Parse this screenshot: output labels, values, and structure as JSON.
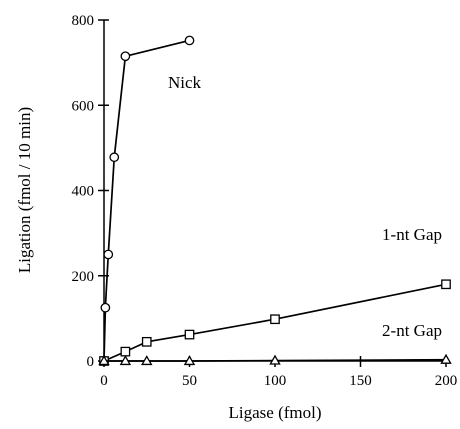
{
  "chart_data": {
    "type": "line",
    "xlabel": "Ligase (fmol)",
    "ylabel": "Ligation (fmol / 10 min)",
    "xlim": [
      0,
      200
    ],
    "ylim": [
      0,
      800
    ],
    "x_ticks": [
      0,
      50,
      100,
      150,
      200
    ],
    "y_ticks": [
      0,
      200,
      400,
      600,
      800
    ],
    "x_tick_labels": [
      "0",
      "50",
      "100",
      "150",
      "200"
    ],
    "y_tick_labels": [
      "0",
      "200",
      "400",
      "600",
      "800"
    ],
    "grid": false,
    "series": [
      {
        "name": "Nick",
        "marker": "circle",
        "x": [
          0,
          0.8,
          2.5,
          6,
          12.5,
          50
        ],
        "y": [
          0,
          125,
          250,
          478,
          715,
          752
        ]
      },
      {
        "name": "1-nt Gap",
        "marker": "square",
        "x": [
          0,
          12.5,
          25,
          50,
          100,
          200
        ],
        "y": [
          0,
          22,
          45,
          62,
          98,
          180
        ]
      },
      {
        "name": "2-nt Gap",
        "marker": "triangle",
        "x": [
          0,
          12.5,
          25,
          50,
          100,
          200
        ],
        "y": [
          0,
          0,
          0,
          0,
          1,
          3
        ]
      }
    ]
  }
}
